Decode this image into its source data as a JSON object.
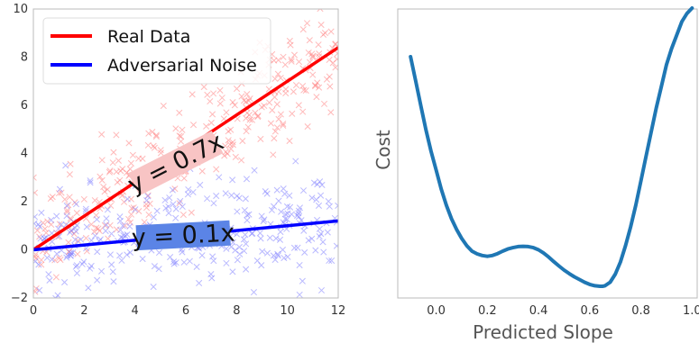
{
  "chart_data": [
    {
      "type": "scatter",
      "title": "",
      "xlabel": "",
      "ylabel": "",
      "xlim": [
        0,
        12
      ],
      "ylim": [
        -2,
        10
      ],
      "x_ticks": [
        "0",
        "2",
        "4",
        "6",
        "8",
        "10",
        "12"
      ],
      "y_ticks": [
        "−2",
        "0",
        "2",
        "4",
        "6",
        "8",
        "10"
      ],
      "grid": false,
      "legend_placement": "top-left",
      "series": [
        {
          "name": "Real Data",
          "kind": "line",
          "color": "#ff0000",
          "x": [
            0,
            12
          ],
          "y": [
            0,
            8.4
          ]
        },
        {
          "name": "Adversarial Noise",
          "kind": "line",
          "color": "#0000ff",
          "x": [
            0,
            12
          ],
          "y": [
            0,
            1.2
          ]
        },
        {
          "kind": "scatter-cloud",
          "marker": "x",
          "color": "#ff8080",
          "slope": 0.7,
          "count": 320
        },
        {
          "kind": "scatter-cloud",
          "marker": "x",
          "color": "#8080ff",
          "slope": 0.1,
          "count": 320
        }
      ],
      "annotations": [
        {
          "text": "y = 0.7x",
          "x": 5.6,
          "y": 3.6,
          "rotation_deg": -27,
          "box_color": "#f8c4c4"
        },
        {
          "text": "y = 0.1x",
          "x": 5.9,
          "y": 0.6,
          "rotation_deg": -3,
          "box_color": "#5b84e6"
        }
      ]
    },
    {
      "type": "line",
      "title": "",
      "xlabel": "Predicted Slope",
      "ylabel": "Cost",
      "xlim": [
        -0.15,
        1.02
      ],
      "ylim": [
        0,
        1.07
      ],
      "x_ticks": [
        "0.0",
        "0.2",
        "0.4",
        "0.6",
        "0.8",
        "1.0"
      ],
      "y_ticks": [],
      "grid": false,
      "series": [
        {
          "color": "#1f77b4",
          "x": [
            -0.1,
            -0.08,
            -0.06,
            -0.04,
            -0.02,
            0.0,
            0.02,
            0.04,
            0.06,
            0.08,
            0.1,
            0.12,
            0.14,
            0.16,
            0.18,
            0.2,
            0.22,
            0.24,
            0.26,
            0.28,
            0.3,
            0.32,
            0.34,
            0.36,
            0.38,
            0.4,
            0.42,
            0.44,
            0.46,
            0.48,
            0.5,
            0.52,
            0.54,
            0.56,
            0.58,
            0.6,
            0.62,
            0.64,
            0.65,
            0.66,
            0.68,
            0.7,
            0.72,
            0.74,
            0.76,
            0.78,
            0.8,
            0.82,
            0.84,
            0.86,
            0.88,
            0.9,
            0.92,
            0.94,
            0.96,
            0.98,
            1.0
          ],
          "y": [
            0.85,
            0.76,
            0.67,
            0.58,
            0.5,
            0.43,
            0.36,
            0.3,
            0.25,
            0.21,
            0.177,
            0.15,
            0.13,
            0.12,
            0.114,
            0.111,
            0.114,
            0.121,
            0.13,
            0.138,
            0.143,
            0.147,
            0.148,
            0.147,
            0.143,
            0.135,
            0.123,
            0.108,
            0.091,
            0.075,
            0.06,
            0.047,
            0.035,
            0.025,
            0.015,
            0.007,
            0.002,
            0.0,
            0.0,
            0.002,
            0.015,
            0.045,
            0.09,
            0.15,
            0.22,
            0.3,
            0.39,
            0.48,
            0.57,
            0.66,
            0.74,
            0.82,
            0.88,
            0.93,
            0.98,
            1.01,
            1.03
          ]
        }
      ]
    }
  ]
}
